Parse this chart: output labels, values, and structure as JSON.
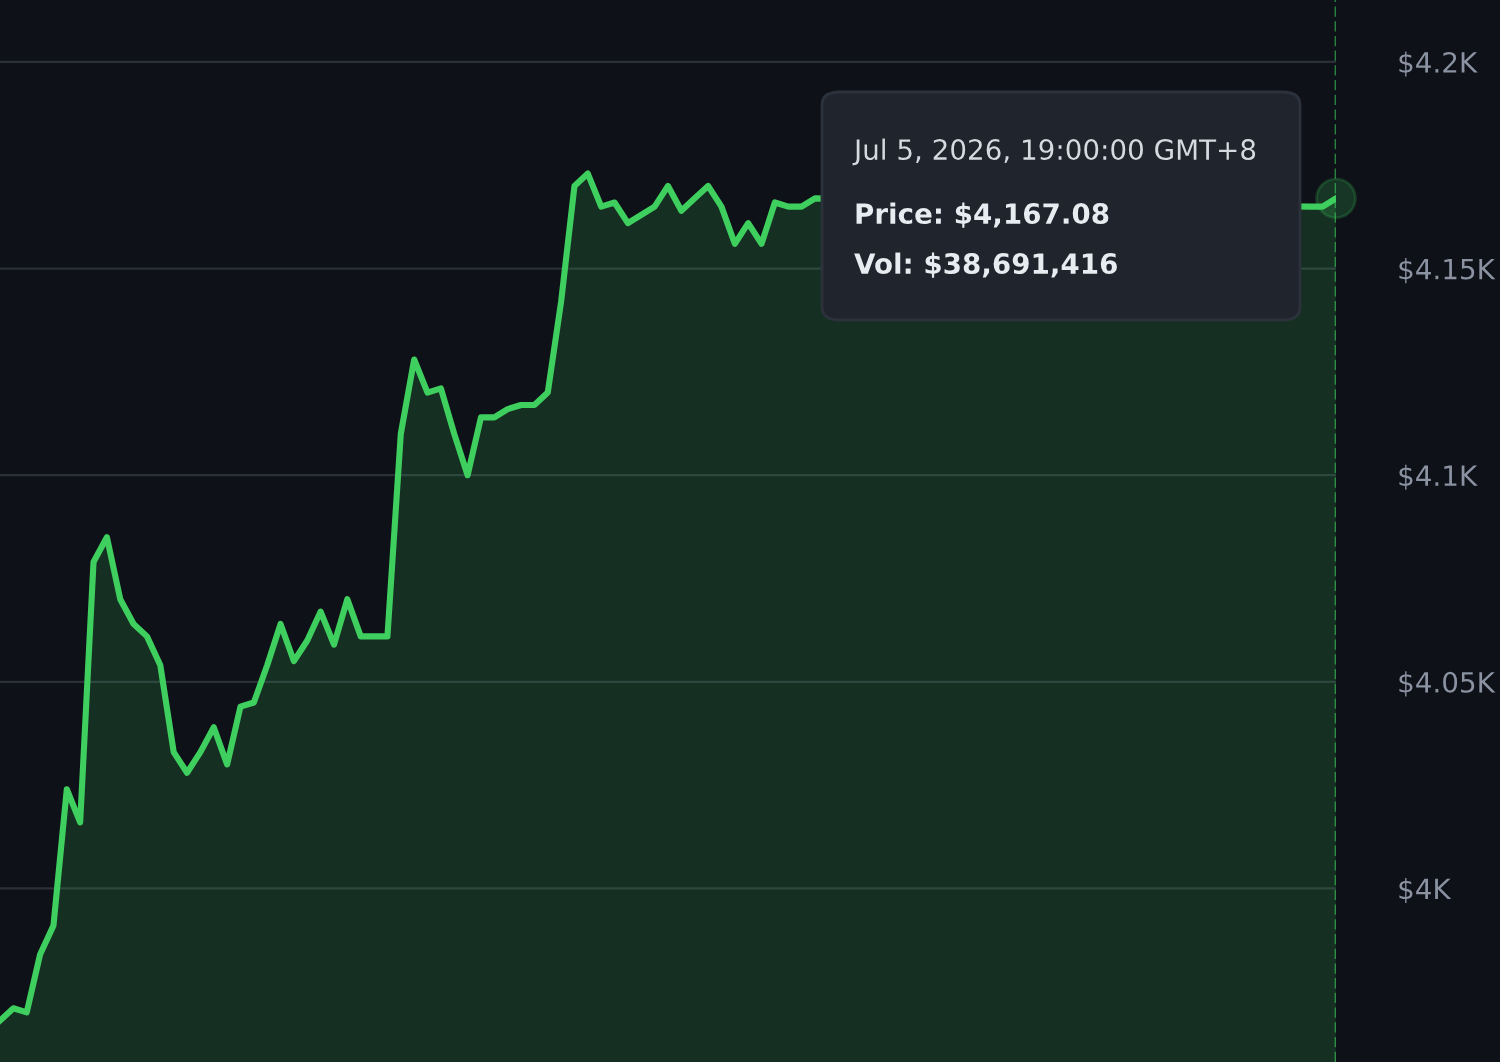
{
  "chart_data": {
    "type": "area",
    "categories": [
      null,
      null,
      null,
      null,
      null,
      null,
      null,
      null,
      null,
      null,
      null,
      null,
      null,
      null,
      null,
      null,
      null,
      null,
      null,
      null,
      null,
      null,
      null,
      null,
      null,
      null,
      null,
      null,
      null,
      null,
      null,
      null,
      null,
      null,
      null,
      null,
      null,
      null,
      null,
      null,
      null,
      null,
      null,
      null,
      null,
      null,
      null,
      null,
      null,
      null,
      null,
      null,
      null,
      null,
      null,
      null,
      null,
      null,
      null,
      null,
      null,
      null,
      null,
      null,
      null,
      null,
      null,
      null,
      null,
      null,
      null,
      null,
      null,
      null,
      null,
      null,
      null,
      null,
      null,
      null,
      null,
      null,
      null,
      null,
      null,
      null,
      null,
      null,
      null,
      null,
      null,
      null,
      null,
      null,
      null,
      null,
      null,
      null,
      null,
      null,
      null
    ],
    "series": [
      {
        "color": "#3ecf5e",
        "values": [
          3968,
          3971,
          3970,
          3984,
          3991,
          4024,
          4016,
          4079,
          4085,
          4070,
          4064,
          4061,
          4054,
          4033,
          4028,
          4033,
          4039,
          4030,
          4044,
          4045,
          4054,
          4064,
          4055,
          4060,
          4067,
          4059,
          4070,
          4061,
          4061,
          4061,
          4110,
          4128,
          4120,
          4121,
          4110,
          4100,
          4114,
          4114,
          4116,
          4117,
          4117,
          4120,
          4142,
          4170,
          4173,
          4165,
          4166,
          4161,
          4163,
          4165,
          4170,
          4164,
          4167,
          4170,
          4165,
          4156,
          4161,
          4156,
          4166,
          4165,
          4165,
          4167,
          null,
          null,
          null,
          null,
          null,
          null,
          null,
          null,
          null,
          null,
          null,
          null,
          null,
          null,
          null,
          null,
          null,
          null,
          null,
          null,
          null,
          null,
          null,
          null,
          null,
          null,
          null,
          null,
          null,
          null,
          null,
          null,
          null,
          null,
          null,
          null,
          4165,
          4165,
          4167
        ]
      }
    ],
    "ylim": [
      3958,
      4215
    ],
    "yticks": [
      {
        "value": 4000,
        "label": "$4K"
      },
      {
        "value": 4050,
        "label": "$4.05K"
      },
      {
        "value": 4100,
        "label": "$4.1K"
      },
      {
        "value": 4150,
        "label": "$4.15K"
      },
      {
        "value": 4200,
        "label": "$4.2K"
      }
    ],
    "tick_labels": "y",
    "grid": "y",
    "marker": "none",
    "line_style": "solid",
    "annotations": [
      "Jul 5, 2026, 19:00:00 GMT+8",
      "Price: $4,167.08",
      "Vol: $38,691,416"
    ]
  }
}
